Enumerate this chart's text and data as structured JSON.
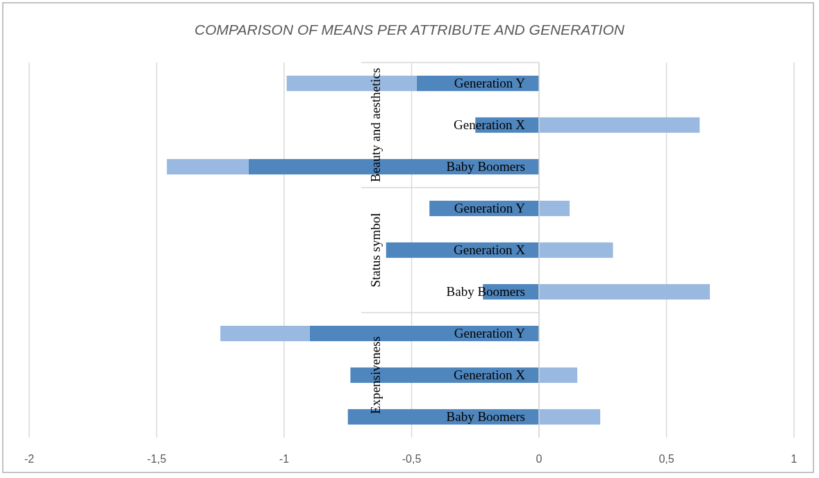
{
  "chart_data": {
    "type": "bar",
    "orientation": "horizontal",
    "stacked": true,
    "title": "COMPARISON OF MEANS PER ATTRIBUTE AND GENERATION",
    "categories": [
      "Generation Y",
      "Generation X",
      "Baby Boomers",
      "Generation Y",
      "Generation X",
      "Baby Boomers",
      "Generation Y",
      "Generation X",
      "Baby Boomers"
    ],
    "series": [
      {
        "color": "#4f86be",
        "values": [
          -0.48,
          -0.25,
          -1.14,
          -0.43,
          -0.6,
          -0.22,
          -0.9,
          -0.74,
          -0.75
        ]
      },
      {
        "color": "#9ab9e0",
        "values": [
          -0.51,
          0.63,
          -0.32,
          0.12,
          0.29,
          0.67,
          -0.35,
          0.15,
          0.24
        ]
      }
    ],
    "xlim": [
      -2,
      1
    ],
    "xticks": [
      -2,
      {
        "value": -1.5,
        "label": "-1,5"
      },
      -1,
      {
        "value": -0.5,
        "label": "-0,5"
      },
      0,
      {
        "value": 0.5,
        "label": "0,5"
      },
      1
    ],
    "grid": "x",
    "annotations": [
      "Beauty and aesthetics",
      "Status symbol",
      "Expensiveness"
    ]
  }
}
